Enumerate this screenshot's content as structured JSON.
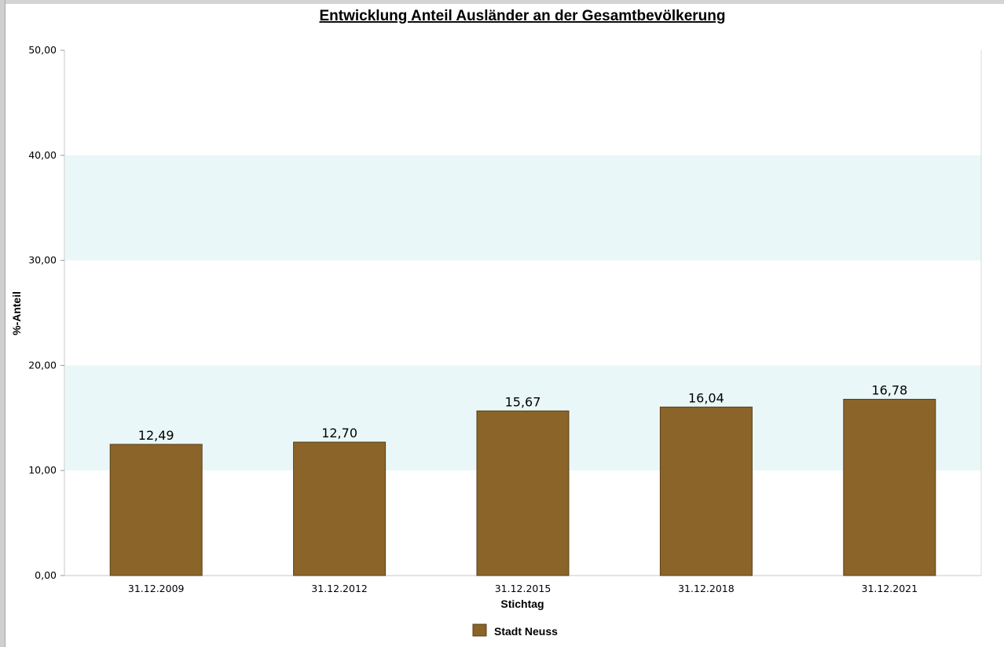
{
  "chart_data": {
    "type": "bar",
    "title": "Entwicklung Anteil Ausländer an der Gesamtbevölkerung",
    "xlabel": "Stichtag",
    "ylabel": "%-Anteil",
    "categories": [
      "31.12.2009",
      "31.12.2012",
      "31.12.2015",
      "31.12.2018",
      "31.12.2021"
    ],
    "series": [
      {
        "name": "Stadt Neuss",
        "values": [
          12.49,
          12.7,
          15.67,
          16.04,
          16.78
        ],
        "value_labels": [
          "12,49",
          "12,70",
          "15,67",
          "16,04",
          "16,78"
        ],
        "color": "#8a6428"
      }
    ],
    "ylim": [
      0,
      50
    ],
    "yticks": [
      0,
      10,
      20,
      30,
      40,
      50
    ],
    "ytick_labels": [
      "0,00",
      "10,00",
      "20,00",
      "30,00",
      "40,00",
      "50,00"
    ],
    "band_color": "#e9f7f8",
    "legend_position": "bottom-center",
    "grid": false
  }
}
